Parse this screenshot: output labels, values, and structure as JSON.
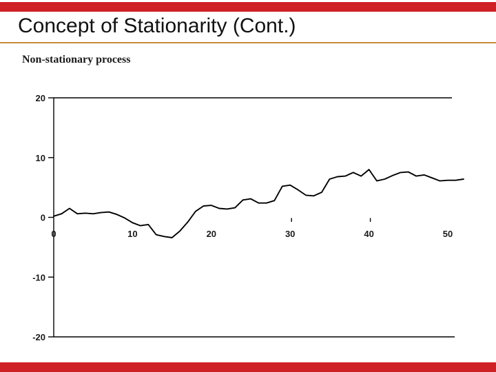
{
  "slide": {
    "title": "Concept of Stationarity (Cont.)",
    "subtitle": "Non-stationary process"
  },
  "colors": {
    "accent_bar": "#cf2026",
    "divider": "#c6893b",
    "curve": "#000000",
    "axis": "#000000"
  },
  "chart_data": {
    "type": "line",
    "title": "",
    "xlabel": "",
    "ylabel": "",
    "xlim": [
      0,
      50
    ],
    "ylim": [
      -20,
      20
    ],
    "xticks": [
      0,
      10,
      20,
      30,
      40,
      50
    ],
    "yticks": [
      20,
      10,
      0,
      -10,
      -20
    ],
    "grid": false,
    "legend_position": "none",
    "series": [
      {
        "name": "non-stationary-process",
        "x": [
          0,
          1,
          2,
          3,
          4,
          5,
          6,
          7,
          8,
          9,
          10,
          11,
          12,
          13,
          14,
          15,
          16,
          17,
          18,
          19,
          20,
          21,
          22,
          23,
          24,
          25,
          26,
          27,
          28,
          29,
          30,
          31,
          32,
          33,
          34,
          35,
          36,
          37,
          38,
          39,
          40,
          41,
          42,
          43,
          44,
          45,
          46,
          47,
          48,
          49,
          50,
          51,
          52
        ],
        "values": [
          0.2,
          0.6,
          1.5,
          0.6,
          0.7,
          0.6,
          0.8,
          0.9,
          0.5,
          -0.1,
          -0.9,
          -1.4,
          -1.2,
          -2.9,
          -3.2,
          -3.4,
          -2.3,
          -0.8,
          1.0,
          1.9,
          2.0,
          1.5,
          1.4,
          1.6,
          2.9,
          3.1,
          2.4,
          2.4,
          2.8,
          5.2,
          5.4,
          4.6,
          3.7,
          3.6,
          4.2,
          6.4,
          6.8,
          6.9,
          7.5,
          6.9,
          8.0,
          6.1,
          6.4,
          7.0,
          7.5,
          7.6,
          6.9,
          7.1,
          6.6,
          6.1,
          6.2,
          6.2,
          6.4
        ]
      }
    ]
  }
}
